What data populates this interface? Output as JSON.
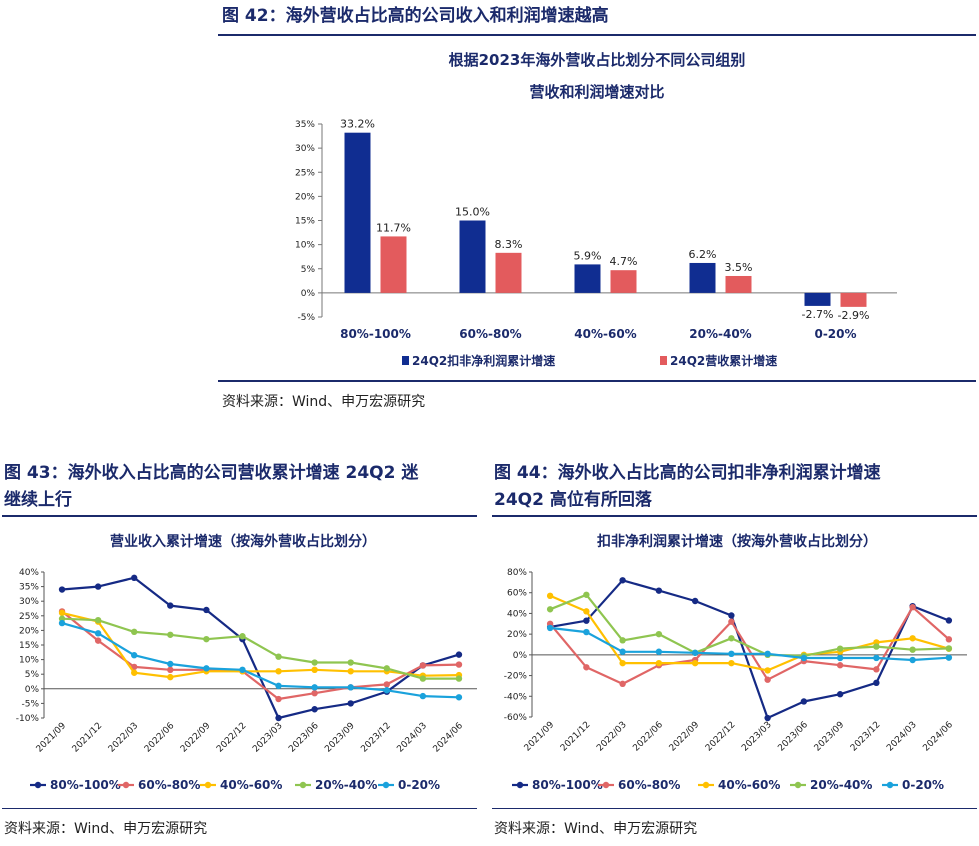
{
  "fig42": {
    "heading": "图 42：海外营收占比高的公司收入和利润增速越高",
    "source": "资料来源：Wind、申万宏源研究"
  },
  "fig43": {
    "heading_line1": "图 43：海外收入占比高的公司营收累计增速 24Q2 迷",
    "heading_line2": "继续上行",
    "source": "资料来源：Wind、申万宏源研究"
  },
  "fig44": {
    "heading_line1": "图 44：海外收入占比高的公司扣非净利润累计增速",
    "heading_line2": "24Q2 高位有所回落",
    "source": "资料来源：Wind、申万宏源研究"
  },
  "chart_data": [
    {
      "type": "bar",
      "title_line1": "根据2023年海外营收占比划分不同公司组别",
      "title_line2": "营收和利润增速对比",
      "categories": [
        "80%-100%",
        "60%-80%",
        "40%-60%",
        "20%-40%",
        "0-20%"
      ],
      "series": [
        {
          "name": "24Q2扣非净利润累计增速",
          "color": "#102d91",
          "values": [
            33.2,
            15.0,
            5.9,
            6.2,
            -2.7
          ],
          "labels": [
            "33.2%",
            "15.0%",
            "5.9%",
            "6.2%",
            "-2.7%"
          ]
        },
        {
          "name": "24Q2营收累计增速",
          "color": "#e35b5d",
          "values": [
            11.7,
            8.3,
            4.7,
            3.5,
            -2.9
          ],
          "labels": [
            "11.7%",
            "8.3%",
            "4.7%",
            "3.5%",
            "-2.9%"
          ]
        }
      ],
      "ylim": [
        -5,
        35
      ],
      "yticks": [
        "-5%",
        "0%",
        "5%",
        "10%",
        "15%",
        "20%",
        "25%",
        "30%",
        "35%"
      ],
      "legend": "bottom"
    },
    {
      "type": "line",
      "title": "营业收入累计增速（按海外营收占比划分）",
      "x": [
        "2021/09",
        "2021/12",
        "2022/03",
        "2022/06",
        "2022/09",
        "2022/12",
        "2023/03",
        "2023/06",
        "2023/09",
        "2023/12",
        "2024/03",
        "2024/06"
      ],
      "series": [
        {
          "name": "80%-100%",
          "color": "#152a85",
          "values": [
            34,
            35,
            38,
            28.5,
            27,
            17,
            -10,
            -7,
            -5,
            -1,
            8,
            11.7
          ]
        },
        {
          "name": "60%-80%",
          "color": "#e06666",
          "values": [
            26.5,
            16.5,
            7.5,
            6.5,
            6.5,
            6,
            -3.5,
            -1.5,
            0.5,
            1.5,
            8,
            8.3
          ]
        },
        {
          "name": "40%-60%",
          "color": "#ffc000",
          "values": [
            26,
            23,
            5.5,
            4,
            6,
            6,
            6,
            6.5,
            6,
            6,
            4.5,
            4.7
          ]
        },
        {
          "name": "20%-40%",
          "color": "#8fc550",
          "values": [
            24,
            23.5,
            19.5,
            18.5,
            17,
            18,
            11,
            9,
            9,
            7,
            3.5,
            3.5
          ]
        },
        {
          "name": "0-20%",
          "color": "#1aa2dc",
          "values": [
            22.5,
            19,
            11.5,
            8.5,
            7,
            6.5,
            1,
            0.5,
            0.5,
            -0.5,
            -2.5,
            -2.9
          ]
        }
      ],
      "ylim": [
        -10,
        40
      ],
      "yticks": [
        "-10%",
        "-5%",
        "0%",
        "5%",
        "10%",
        "15%",
        "20%",
        "25%",
        "30%",
        "35%",
        "40%"
      ],
      "legend": "bottom"
    },
    {
      "type": "line",
      "title": "扣非净利润累计增速（按海外营收占比划分）",
      "x": [
        "2021/09",
        "2021/12",
        "2022/03",
        "2022/06",
        "2022/09",
        "2022/12",
        "2023/03",
        "2023/06",
        "2023/09",
        "2023/12",
        "2024/03",
        "2024/06"
      ],
      "series": [
        {
          "name": "80%-100%",
          "color": "#152a85",
          "values": [
            27,
            33,
            72,
            62,
            52,
            38,
            -61,
            -45,
            -38,
            -27,
            47,
            33.2
          ]
        },
        {
          "name": "60%-80%",
          "color": "#e06666",
          "values": [
            30,
            -12,
            -28,
            -10,
            -5,
            32,
            -24,
            -6,
            -10,
            -14,
            46,
            15.0
          ]
        },
        {
          "name": "40%-60%",
          "color": "#ffc000",
          "values": [
            57,
            42,
            -8,
            -8,
            -8,
            -8,
            -15,
            0,
            3,
            12,
            16,
            5.9
          ]
        },
        {
          "name": "20%-40%",
          "color": "#8fc550",
          "values": [
            44,
            58,
            14,
            20,
            2,
            16,
            0,
            -1,
            6,
            8,
            5,
            6.2
          ]
        },
        {
          "name": "0-20%",
          "color": "#1aa2dc",
          "values": [
            26,
            22,
            3,
            3,
            2,
            1,
            1,
            -3,
            -3,
            -3,
            -5,
            -2.7
          ]
        }
      ],
      "ylim": [
        -60,
        80
      ],
      "yticks": [
        "-60%",
        "-40%",
        "-20%",
        "0%",
        "20%",
        "40%",
        "60%",
        "80%"
      ],
      "legend": "bottom"
    }
  ]
}
